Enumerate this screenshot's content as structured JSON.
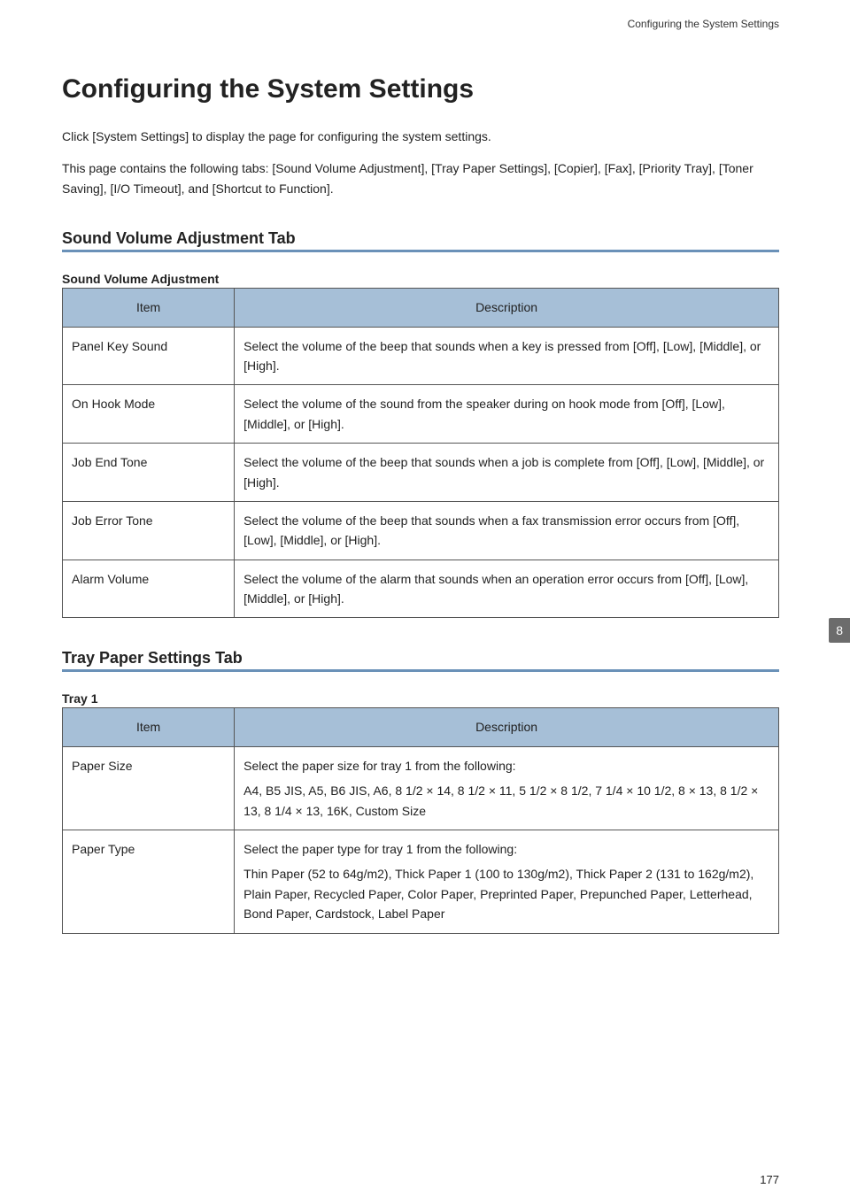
{
  "running_header": "Configuring the System Settings",
  "page_title": "Configuring the System Settings",
  "intro_paragraphs": [
    "Click [System Settings] to display the page for configuring the system settings.",
    "This page contains the following tabs: [Sound Volume Adjustment], [Tray Paper Settings], [Copier], [Fax], [Priority Tray], [Toner Saving], [I/O Timeout], and [Shortcut to Function]."
  ],
  "side_tab": "8",
  "page_number": "177",
  "columns": {
    "item": "Item",
    "description": "Description"
  },
  "colors": {
    "header_bg": "#a6bfd7",
    "section_rule": "#6a91b8",
    "side_tab_bg": "#6c6c6c"
  },
  "sections": [
    {
      "heading": "Sound Volume Adjustment Tab",
      "tables": [
        {
          "title": "Sound Volume Adjustment",
          "rows": [
            {
              "item": "Panel Key Sound",
              "description": [
                "Select the volume of the beep that sounds when a key is pressed from [Off], [Low], [Middle], or [High]."
              ]
            },
            {
              "item": "On Hook Mode",
              "description": [
                "Select the volume of the sound from the speaker during on hook mode from [Off], [Low], [Middle], or [High]."
              ]
            },
            {
              "item": "Job End Tone",
              "description": [
                "Select the volume of the beep that sounds when a job is complete from [Off], [Low], [Middle], or [High]."
              ]
            },
            {
              "item": "Job Error Tone",
              "description": [
                "Select the volume of the beep that sounds when a fax transmission error occurs from [Off], [Low], [Middle], or [High]."
              ]
            },
            {
              "item": "Alarm Volume",
              "description": [
                "Select the volume of the alarm that sounds when an operation error occurs from [Off], [Low], [Middle], or [High]."
              ]
            }
          ]
        }
      ]
    },
    {
      "heading": "Tray Paper Settings Tab",
      "tables": [
        {
          "title": "Tray 1",
          "rows": [
            {
              "item": "Paper Size",
              "description": [
                "Select the paper size for tray 1 from the following:",
                "A4, B5 JIS, A5, B6 JIS, A6, 8 1/2 × 14, 8 1/2 × 11, 5 1/2 × 8 1/2, 7 1/4 × 10 1/2, 8 × 13, 8 1/2 × 13, 8 1/4 × 13, 16K, Custom Size"
              ]
            },
            {
              "item": "Paper Type",
              "description": [
                "Select the paper type for tray 1 from the following:",
                "Thin Paper (52 to 64g/m2), Thick Paper 1 (100 to 130g/m2), Thick Paper 2 (131 to 162g/m2), Plain Paper, Recycled Paper, Color Paper, Preprinted Paper, Prepunched Paper, Letterhead, Bond Paper, Cardstock, Label Paper"
              ]
            }
          ]
        }
      ]
    }
  ]
}
